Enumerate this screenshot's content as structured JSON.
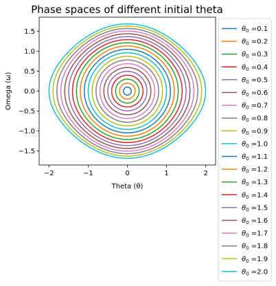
{
  "chart_data": {
    "type": "line",
    "title": "Phase spaces of different initial theta",
    "xlabel": "Theta (θ)",
    "ylabel": "Omega (ω)",
    "xlim": [
      -2.25,
      2.25
    ],
    "ylim": [
      -1.85,
      1.85
    ],
    "xticks": [
      -2,
      -1,
      0,
      1,
      2
    ],
    "yticks": [
      -1.5,
      -1.0,
      -0.5,
      0.0,
      0.5,
      1.0,
      1.5
    ],
    "xtick_labels": [
      "−2",
      "−1",
      "0",
      "1",
      "2"
    ],
    "ytick_labels": [
      "−1.5",
      "−1.0",
      "−0.5",
      "0.0",
      "0.5",
      "1.0",
      "1.5"
    ],
    "legend_placement": "outside-right",
    "legend_prefix": "θ",
    "legend_sub": "0",
    "model": "pendulum",
    "series": [
      {
        "name": "=0.1",
        "theta0": 0.1,
        "color": "#1f77b4"
      },
      {
        "name": "=0.2",
        "theta0": 0.2,
        "color": "#ff7f0e"
      },
      {
        "name": "=0.3",
        "theta0": 0.3,
        "color": "#2ca02c"
      },
      {
        "name": "=0.4",
        "theta0": 0.4,
        "color": "#d62728"
      },
      {
        "name": "=0.5",
        "theta0": 0.5,
        "color": "#9467bd"
      },
      {
        "name": "=0.6",
        "theta0": 0.6,
        "color": "#8c564b"
      },
      {
        "name": "=0.7",
        "theta0": 0.7,
        "color": "#e377c2"
      },
      {
        "name": "=0.8",
        "theta0": 0.8,
        "color": "#7f7f7f"
      },
      {
        "name": "=0.9",
        "theta0": 0.9,
        "color": "#bcbd22"
      },
      {
        "name": "=1.0",
        "theta0": 1.0,
        "color": "#17becf"
      },
      {
        "name": "=1.1",
        "theta0": 1.1,
        "color": "#1f77b4"
      },
      {
        "name": "=1.2",
        "theta0": 1.2,
        "color": "#ff7f0e"
      },
      {
        "name": "=1.3",
        "theta0": 1.3,
        "color": "#2ca02c"
      },
      {
        "name": "=1.4",
        "theta0": 1.4,
        "color": "#d62728"
      },
      {
        "name": "=1.5",
        "theta0": 1.5,
        "color": "#9467bd"
      },
      {
        "name": "=1.6",
        "theta0": 1.6,
        "color": "#8c564b"
      },
      {
        "name": "=1.7",
        "theta0": 1.7,
        "color": "#e377c2"
      },
      {
        "name": "=1.8",
        "theta0": 1.8,
        "color": "#7f7f7f"
      },
      {
        "name": "=1.9",
        "theta0": 1.9,
        "color": "#bcbd22"
      },
      {
        "name": "=2.0",
        "theta0": 2.0,
        "color": "#17becf"
      }
    ]
  }
}
